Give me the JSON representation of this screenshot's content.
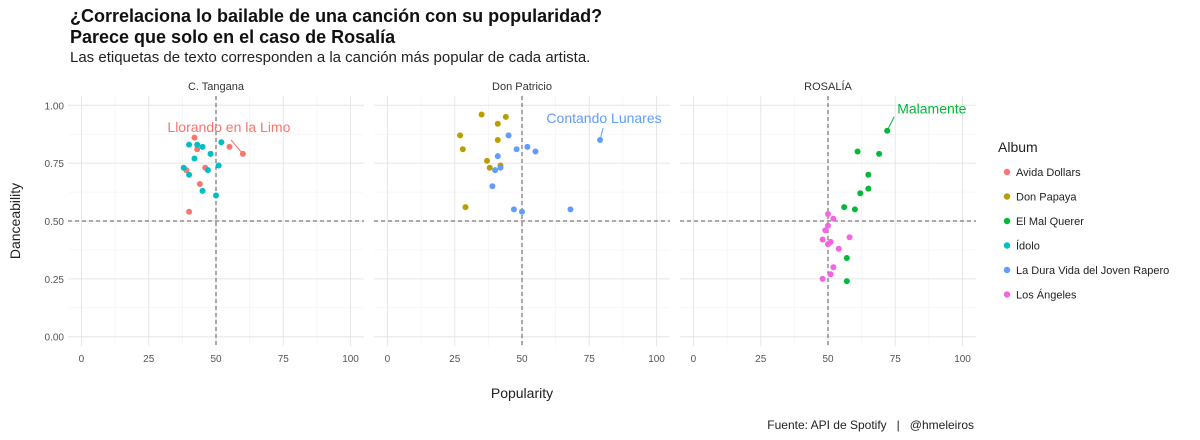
{
  "title_line1": "¿Correlaciona lo bailable de una canción con su popularidad?",
  "title_line2": "Parece que solo en el caso de Rosalía",
  "subtitle": "Las etiquetas de texto corresponden a la canción más popular de cada artista.",
  "caption": "Fuente: API de Spotify   |   @hmeleiros",
  "chart_data": {
    "type": "scatter",
    "xlabel": "Popularity",
    "ylabel": "Danceability",
    "xlim": [
      -5,
      105
    ],
    "ylim": [
      -0.04,
      1.04
    ],
    "x_ticks": [
      0,
      25,
      50,
      75,
      100
    ],
    "y_ticks": [
      0.0,
      0.25,
      0.5,
      0.75,
      1.0
    ],
    "y_tick_labels": [
      "0.00",
      "0.25",
      "0.50",
      "0.75",
      "1.00"
    ],
    "reference_lines": {
      "x": 50,
      "y": 0.5
    },
    "grid": true,
    "legend": {
      "title": "Album",
      "position": "right",
      "entries": [
        {
          "name": "Avida Dollars",
          "color": "#F8766D"
        },
        {
          "name": "Don Papaya",
          "color": "#B79F00"
        },
        {
          "name": "El Mal Querer",
          "color": "#00BA38"
        },
        {
          "name": "Ídolo",
          "color": "#00BFC4"
        },
        {
          "name": "La Dura Vida del Joven Rapero",
          "color": "#619CFF"
        },
        {
          "name": "Los Ángeles",
          "color": "#F564E3"
        }
      ]
    },
    "facets": [
      {
        "name": "C. Tangana",
        "annotation": {
          "text": "Llorando en la Limo",
          "x": 60,
          "y": 0.79,
          "color": "#F8766D"
        },
        "points": [
          {
            "album": "Avida Dollars",
            "x": 40,
            "y": 0.54
          },
          {
            "album": "Avida Dollars",
            "x": 42,
            "y": 0.86
          },
          {
            "album": "Avida Dollars",
            "x": 43,
            "y": 0.81
          },
          {
            "album": "Avida Dollars",
            "x": 44,
            "y": 0.66
          },
          {
            "album": "Avida Dollars",
            "x": 46,
            "y": 0.73
          },
          {
            "album": "Avida Dollars",
            "x": 48,
            "y": 0.79
          },
          {
            "album": "Avida Dollars",
            "x": 55,
            "y": 0.82
          },
          {
            "album": "Avida Dollars",
            "x": 60,
            "y": 0.79
          },
          {
            "album": "Avida Dollars",
            "x": 39,
            "y": 0.72
          },
          {
            "album": "Ídolo",
            "x": 38,
            "y": 0.73
          },
          {
            "album": "Ídolo",
            "x": 40,
            "y": 0.83
          },
          {
            "album": "Ídolo",
            "x": 40,
            "y": 0.7
          },
          {
            "album": "Ídolo",
            "x": 42,
            "y": 0.77
          },
          {
            "album": "Ídolo",
            "x": 43,
            "y": 0.83
          },
          {
            "album": "Ídolo",
            "x": 45,
            "y": 0.82
          },
          {
            "album": "Ídolo",
            "x": 45,
            "y": 0.63
          },
          {
            "album": "Ídolo",
            "x": 47,
            "y": 0.72
          },
          {
            "album": "Ídolo",
            "x": 48,
            "y": 0.79
          },
          {
            "album": "Ídolo",
            "x": 50,
            "y": 0.61
          },
          {
            "album": "Ídolo",
            "x": 51,
            "y": 0.74
          },
          {
            "album": "Ídolo",
            "x": 52,
            "y": 0.84
          }
        ]
      },
      {
        "name": "Don Patricio",
        "annotation": {
          "text": "Contando Lunares",
          "x": 79,
          "y": 0.85,
          "color": "#619CFF"
        },
        "points": [
          {
            "album": "Don Papaya",
            "x": 27,
            "y": 0.87
          },
          {
            "album": "Don Papaya",
            "x": 28,
            "y": 0.81
          },
          {
            "album": "Don Papaya",
            "x": 29,
            "y": 0.56
          },
          {
            "album": "Don Papaya",
            "x": 35,
            "y": 0.96
          },
          {
            "album": "Don Papaya",
            "x": 37,
            "y": 0.76
          },
          {
            "album": "Don Papaya",
            "x": 38,
            "y": 0.73
          },
          {
            "album": "Don Papaya",
            "x": 41,
            "y": 0.92
          },
          {
            "album": "Don Papaya",
            "x": 41,
            "y": 0.85
          },
          {
            "album": "Don Papaya",
            "x": 42,
            "y": 0.74
          },
          {
            "album": "Don Papaya",
            "x": 44,
            "y": 0.95
          },
          {
            "album": "La Dura Vida del Joven Rapero",
            "x": 39,
            "y": 0.65
          },
          {
            "album": "La Dura Vida del Joven Rapero",
            "x": 40,
            "y": 0.72
          },
          {
            "album": "La Dura Vida del Joven Rapero",
            "x": 41,
            "y": 0.78
          },
          {
            "album": "La Dura Vida del Joven Rapero",
            "x": 42,
            "y": 0.73
          },
          {
            "album": "La Dura Vida del Joven Rapero",
            "x": 45,
            "y": 0.87
          },
          {
            "album": "La Dura Vida del Joven Rapero",
            "x": 47,
            "y": 0.55
          },
          {
            "album": "La Dura Vida del Joven Rapero",
            "x": 48,
            "y": 0.81
          },
          {
            "album": "La Dura Vida del Joven Rapero",
            "x": 50,
            "y": 0.54
          },
          {
            "album": "La Dura Vida del Joven Rapero",
            "x": 52,
            "y": 0.82
          },
          {
            "album": "La Dura Vida del Joven Rapero",
            "x": 55,
            "y": 0.8
          },
          {
            "album": "La Dura Vida del Joven Rapero",
            "x": 68,
            "y": 0.55
          },
          {
            "album": "La Dura Vida del Joven Rapero",
            "x": 79,
            "y": 0.85
          }
        ]
      },
      {
        "name": "ROSALÍA",
        "annotation": {
          "text": "Malamente",
          "x": 72,
          "y": 0.89,
          "color": "#00BA38"
        },
        "points": [
          {
            "album": "El Mal Querer",
            "x": 56,
            "y": 0.56
          },
          {
            "album": "El Mal Querer",
            "x": 57,
            "y": 0.34
          },
          {
            "album": "El Mal Querer",
            "x": 57,
            "y": 0.24
          },
          {
            "album": "El Mal Querer",
            "x": 60,
            "y": 0.55
          },
          {
            "album": "El Mal Querer",
            "x": 61,
            "y": 0.8
          },
          {
            "album": "El Mal Querer",
            "x": 62,
            "y": 0.62
          },
          {
            "album": "El Mal Querer",
            "x": 65,
            "y": 0.7
          },
          {
            "album": "El Mal Querer",
            "x": 65,
            "y": 0.64
          },
          {
            "album": "El Mal Querer",
            "x": 69,
            "y": 0.79
          },
          {
            "album": "El Mal Querer",
            "x": 72,
            "y": 0.89
          },
          {
            "album": "Los Ángeles",
            "x": 48,
            "y": 0.42
          },
          {
            "album": "Los Ángeles",
            "x": 48,
            "y": 0.25
          },
          {
            "album": "Los Ángeles",
            "x": 49,
            "y": 0.46
          },
          {
            "album": "Los Ángeles",
            "x": 50,
            "y": 0.53
          },
          {
            "album": "Los Ángeles",
            "x": 50,
            "y": 0.48
          },
          {
            "album": "Los Ángeles",
            "x": 50,
            "y": 0.4
          },
          {
            "album": "Los Ángeles",
            "x": 51,
            "y": 0.27
          },
          {
            "album": "Los Ángeles",
            "x": 51,
            "y": 0.41
          },
          {
            "album": "Los Ángeles",
            "x": 52,
            "y": 0.51
          },
          {
            "album": "Los Ángeles",
            "x": 52,
            "y": 0.3
          },
          {
            "album": "Los Ángeles",
            "x": 54,
            "y": 0.38
          },
          {
            "album": "Los Ángeles",
            "x": 58,
            "y": 0.43
          }
        ]
      }
    ]
  }
}
